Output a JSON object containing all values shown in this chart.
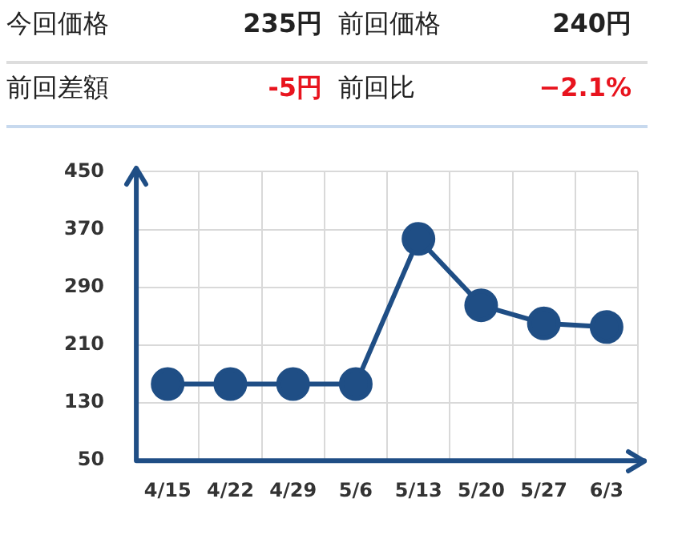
{
  "chart_data": {
    "type": "line",
    "annotations": [
      "今回価格",
      "235円",
      "前回価格",
      "240円",
      "前回差額",
      "-5円",
      "前回比",
      "−2.1%"
    ],
    "categories": [
      "4/15",
      "4/22",
      "4/29",
      "5/6",
      "5/13",
      "5/20",
      "5/27",
      "6/3"
    ],
    "series": [
      {
        "color": "#1f4e85",
        "values": [
          156,
          156,
          156,
          156,
          357,
          265,
          240,
          235
        ]
      }
    ],
    "ylim": [
      50,
      450
    ],
    "yticks": [
      50,
      130,
      210,
      290,
      370,
      450
    ],
    "grid": true,
    "legend": false,
    "marker": "circle",
    "line_style": "solid"
  }
}
